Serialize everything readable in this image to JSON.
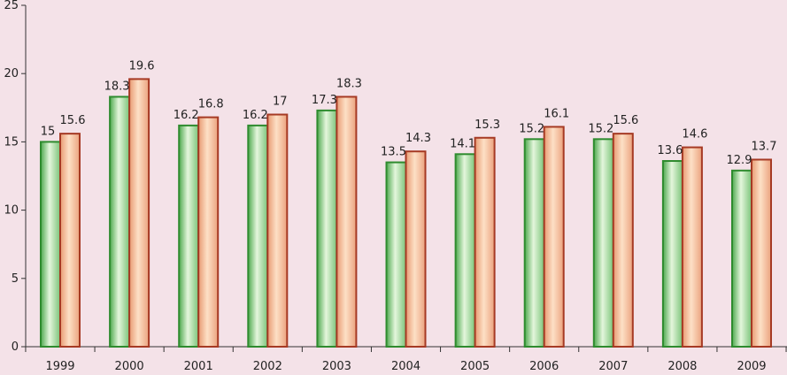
{
  "chart_data": {
    "type": "bar",
    "title": "",
    "xlabel": "",
    "ylabel": "",
    "categories": [
      "1999",
      "2000",
      "2001",
      "2002",
      "2003",
      "2004",
      "2005",
      "2006",
      "2007",
      "2008",
      "2009"
    ],
    "series": [
      {
        "values": [
          15,
          18.3,
          16.2,
          16.2,
          17.3,
          13.5,
          14.1,
          15.2,
          15.2,
          13.6,
          12.9
        ],
        "color": "#2e8b2e"
      },
      {
        "values": [
          15.6,
          19.6,
          16.8,
          17,
          18.3,
          14.3,
          15.3,
          16.1,
          15.6,
          14.6,
          13.7
        ],
        "color": "#a63a24"
      }
    ],
    "data_labels": [
      [
        "15",
        "18.3",
        "16.2",
        "16.2",
        "17.3",
        "13.5",
        "14.1",
        "15.2",
        "15.2",
        "13.6",
        "12.9"
      ],
      [
        "15.6",
        "19.6",
        "16.8",
        "17",
        "18.3",
        "14.3",
        "15.3",
        "16.1",
        "15.6",
        "14.6",
        "13.7"
      ]
    ],
    "ylim": [
      0,
      25
    ],
    "yticks": [
      "0",
      "5",
      "10",
      "15",
      "20",
      "25"
    ],
    "grid": false,
    "legend": "none"
  }
}
